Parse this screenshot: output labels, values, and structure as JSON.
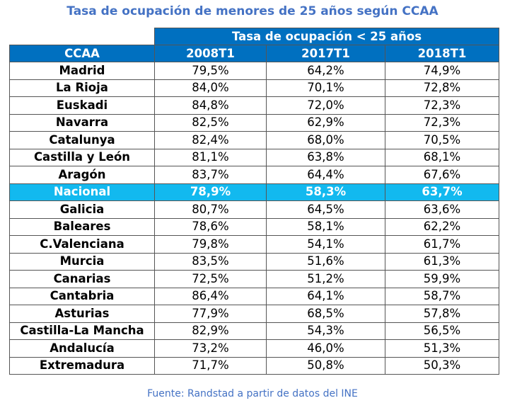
{
  "title": "Tasa de ocupación de menores de 25 años según CCAA",
  "table": {
    "group_header": "Tasa de ocupación < 25 años",
    "columns": [
      "CCAA",
      "2008T1",
      "2017T1",
      "2018T1"
    ],
    "rows": [
      {
        "region": "Madrid",
        "values": [
          "79,5%",
          "64,2%",
          "74,9%"
        ]
      },
      {
        "region": "La Rioja",
        "values": [
          "84,0%",
          "70,1%",
          "72,8%"
        ]
      },
      {
        "region": "Euskadi",
        "values": [
          "84,8%",
          "72,0%",
          "72,3%"
        ]
      },
      {
        "region": "Navarra",
        "values": [
          "82,5%",
          "62,9%",
          "72,3%"
        ]
      },
      {
        "region": "Catalunya",
        "values": [
          "82,4%",
          "68,0%",
          "70,5%"
        ]
      },
      {
        "region": "Castilla y León",
        "values": [
          "81,1%",
          "63,8%",
          "68,1%"
        ]
      },
      {
        "region": "Aragón",
        "values": [
          "83,7%",
          "64,4%",
          "67,6%"
        ]
      },
      {
        "region": "Nacional",
        "values": [
          "78,9%",
          "58,3%",
          "63,7%"
        ],
        "highlight": true
      },
      {
        "region": "Galicia",
        "values": [
          "80,7%",
          "64,5%",
          "63,6%"
        ]
      },
      {
        "region": "Baleares",
        "values": [
          "78,6%",
          "58,1%",
          "62,2%"
        ]
      },
      {
        "region": "C.Valenciana",
        "values": [
          "79,8%",
          "54,1%",
          "61,7%"
        ]
      },
      {
        "region": "Murcia",
        "values": [
          "83,5%",
          "51,6%",
          "61,3%"
        ]
      },
      {
        "region": "Canarias",
        "values": [
          "72,5%",
          "51,2%",
          "59,9%"
        ]
      },
      {
        "region": "Cantabria",
        "values": [
          "86,4%",
          "64,1%",
          "58,7%"
        ]
      },
      {
        "region": "Asturias",
        "values": [
          "77,9%",
          "68,5%",
          "57,8%"
        ]
      },
      {
        "region": "Castilla-La Mancha",
        "values": [
          "82,9%",
          "54,3%",
          "56,5%"
        ]
      },
      {
        "region": "Andalucía",
        "values": [
          "73,2%",
          "46,0%",
          "51,3%"
        ]
      },
      {
        "region": "Extremadura",
        "values": [
          "71,7%",
          "50,8%",
          "50,3%"
        ]
      }
    ]
  },
  "source": "Fuente: Randstad a partir de datos del INE",
  "colors": {
    "title_text": "#4472c4",
    "header_bg": "#0070c0",
    "highlight_bg": "#12b9ef",
    "border": "#555555"
  }
}
